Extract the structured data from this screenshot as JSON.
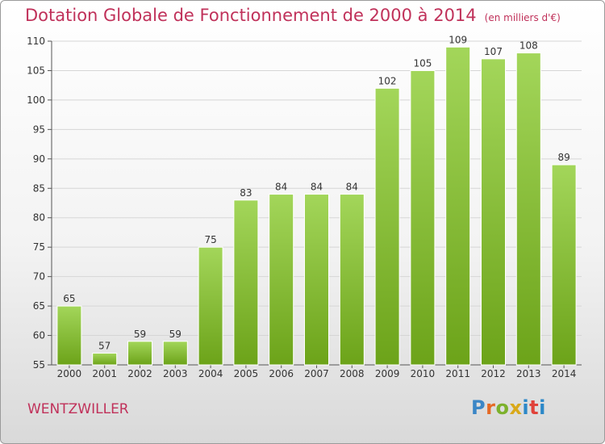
{
  "chart_data": {
    "type": "bar",
    "title": "Dotation Globale de Fonctionnement de 2000 à 2014",
    "subtitle": "(en milliers d'€)",
    "categories": [
      "2000",
      "2001",
      "2002",
      "2003",
      "2004",
      "2005",
      "2006",
      "2007",
      "2008",
      "2009",
      "2010",
      "2011",
      "2012",
      "2013",
      "2014"
    ],
    "values": [
      65,
      57,
      59,
      59,
      75,
      83,
      84,
      84,
      84,
      102,
      105,
      109,
      107,
      108,
      89
    ],
    "value_labels": [
      "65",
      "57",
      "59",
      "59",
      "75",
      "83",
      "84",
      "84",
      "84",
      "102",
      "105",
      "109",
      "107",
      "108",
      "89"
    ],
    "xlabel": "",
    "ylabel": "",
    "ylim": [
      55,
      110
    ],
    "yticks": [
      "55",
      "60",
      "65",
      "70",
      "75",
      "80",
      "85",
      "90",
      "95",
      "100",
      "105",
      "110"
    ],
    "grid": true,
    "bar_color": "#8cc63f"
  },
  "commune": "WENTZWILLER",
  "logo": {
    "text": "Proxiti"
  }
}
